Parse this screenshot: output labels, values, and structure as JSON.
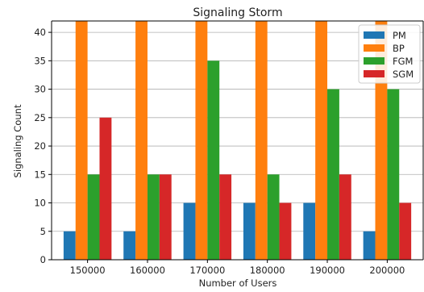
{
  "chart_data": {
    "type": "bar",
    "title": "Signaling Storm",
    "xlabel": "Number of Users",
    "ylabel": "Signaling Count",
    "categories": [
      "150000",
      "160000",
      "170000",
      "180000",
      "190000",
      "200000"
    ],
    "series": [
      {
        "name": "PM",
        "values": [
          5,
          5,
          10,
          10,
          10,
          5
        ],
        "color": "#1f77b4"
      },
      {
        "name": "BP",
        "values": [
          42,
          42,
          42,
          42,
          42,
          42
        ],
        "color": "#ff7f0e"
      },
      {
        "name": "FGM",
        "values": [
          15,
          15,
          35,
          15,
          30,
          30
        ],
        "color": "#2ca02c"
      },
      {
        "name": "SGM",
        "values": [
          25,
          15,
          15,
          10,
          15,
          10
        ],
        "color": "#d62728"
      }
    ],
    "ylim": [
      0,
      42
    ],
    "yticks": [
      0,
      5,
      10,
      15,
      20,
      25,
      30,
      35,
      40
    ],
    "grid": "horizontal",
    "legend_position": "top-right"
  }
}
